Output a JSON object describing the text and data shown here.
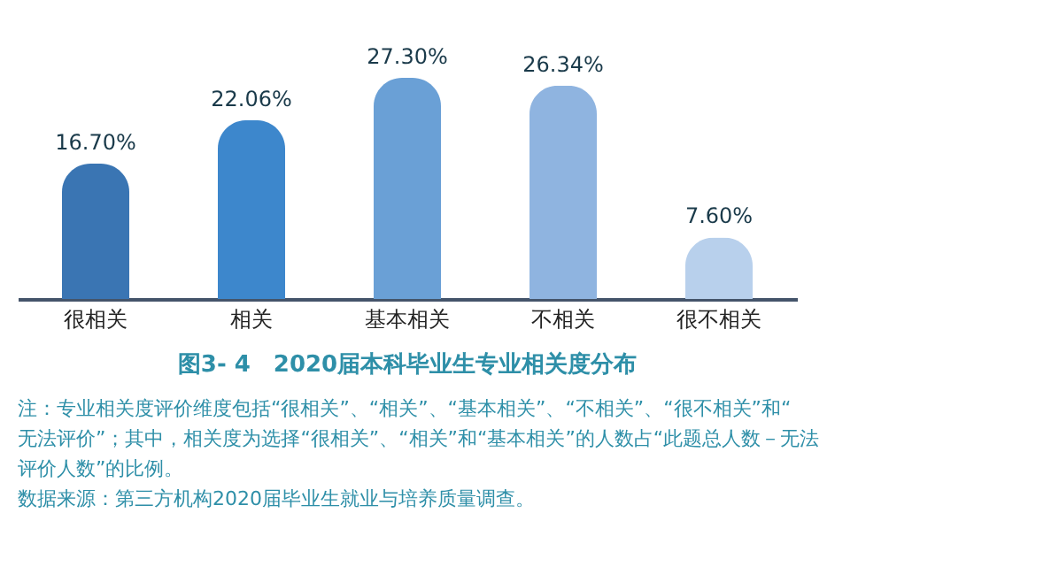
{
  "chart_data": {
    "type": "bar",
    "title": "图3- 4　2020届本科毕业生专业相关度分布",
    "categories": [
      "很相关",
      "相关",
      "基本相关",
      "不相关",
      "很不相关"
    ],
    "values": [
      16.7,
      22.06,
      27.3,
      26.34,
      7.6
    ],
    "colors": [
      "#3a75b3",
      "#3d87cc",
      "#6aa0d6",
      "#8fb4e0",
      "#b8d0ec"
    ],
    "value_labels": [
      "16.70%",
      "22.06%",
      "27.30%",
      "26.34%",
      "7.60%"
    ],
    "annotations": [
      "注：专业相关度评价维度包括“很相关”、“相关”、“基本相关”、“不相关”、“很不相关”和“无法评价”；其中，相关度为选择“很相关”、“相关”和“基本相关”的人数占“此题总人数－无法评价人数”的比例。",
      "数据来源：第三方机构2020届毕业生就业与培养质量调查。"
    ],
    "tick_labels": "x",
    "grid": false
  }
}
